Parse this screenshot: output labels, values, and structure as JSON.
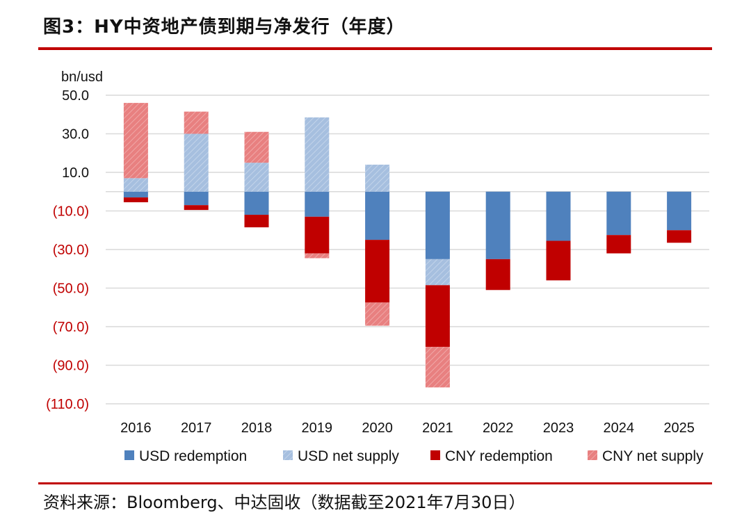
{
  "header": {
    "title": "图3：HY中资地产债到期与净发行（年度）"
  },
  "footer": {
    "source": "资料来源：Bloomberg、中达固收（数据截至2021年7月30日）"
  },
  "chart_data": {
    "type": "bar",
    "stacked": true,
    "unit_label": "bn/usd",
    "categories": [
      "2016",
      "2017",
      "2018",
      "2019",
      "2020",
      "2021",
      "2022",
      "2023",
      "2024",
      "2025"
    ],
    "ylim": [
      -110,
      50
    ],
    "y_ticks": [
      50,
      30,
      10,
      -10,
      -30,
      -50,
      -70,
      -90,
      -110
    ],
    "y_tick_labels": [
      "50.0",
      "30.0",
      "10.0",
      "(10.0)",
      "(30.0)",
      "(50.0)",
      "(70.0)",
      "(90.0)",
      "(110.0)"
    ],
    "grid": true,
    "legend_position": "bottom",
    "series": [
      {
        "name": "USD redemption",
        "color": "#4f81bd",
        "pattern": false,
        "values": [
          -3,
          -7,
          -12,
          -13,
          -25,
          -35,
          -35,
          -25.5,
          -22.5,
          -20
        ]
      },
      {
        "name": "USD net supply",
        "color": "#a6bfdf",
        "pattern": true,
        "values": [
          7,
          30,
          15,
          38.5,
          14,
          -13.5,
          0,
          0,
          0,
          0
        ]
      },
      {
        "name": "CNY redemption",
        "color": "#c00000",
        "pattern": false,
        "values": [
          -2.5,
          -2.5,
          -6.5,
          -19,
          -32.5,
          -32,
          -16,
          -20.5,
          -9.5,
          -6.5
        ]
      },
      {
        "name": "CNY net supply",
        "color": "#e88080",
        "pattern": true,
        "values": [
          39,
          11.5,
          16,
          -2.5,
          -12,
          -21,
          0,
          0,
          0,
          0
        ]
      }
    ]
  }
}
